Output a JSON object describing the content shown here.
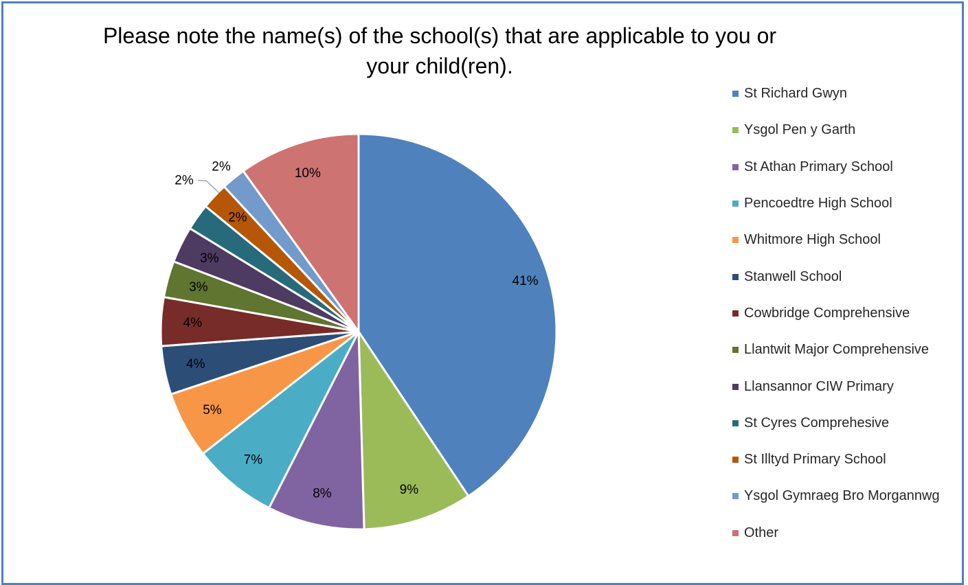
{
  "chart_data": {
    "type": "pie",
    "title": "Please note the name(s) of the school(s) that are applicable to you or your child(ren).",
    "legend_position": "right",
    "start_angle_deg": 0,
    "direction": "clockwise",
    "slices": [
      {
        "name": "St Richard Gwyn",
        "value": 41,
        "label": "41%",
        "color": "#4f81bd"
      },
      {
        "name": "Ysgol Pen y Garth",
        "value": 9,
        "label": "9%",
        "color": "#9bbb59"
      },
      {
        "name": "St Athan Primary School",
        "value": 8,
        "label": "8%",
        "color": "#8064a2"
      },
      {
        "name": "Pencoedtre High School",
        "value": 7,
        "label": "7%",
        "color": "#4bacc6"
      },
      {
        "name": "Whitmore High School",
        "value": 5.5,
        "label": "5%",
        "color": "#f79646"
      },
      {
        "name": "Stanwell School",
        "value": 4,
        "label": "4%",
        "color": "#2c4d75"
      },
      {
        "name": "Cowbridge Comprehensive",
        "value": 4,
        "label": "4%",
        "color": "#772c2a"
      },
      {
        "name": "Llantwit Major Comprehensive",
        "value": 3,
        "label": "3%",
        "color": "#5f7530"
      },
      {
        "name": "Llansannor CIW Primary",
        "value": 3,
        "label": "3%",
        "color": "#4d3b62"
      },
      {
        "name": "St Cyres Comprehesive",
        "value": 2.2,
        "label": "2%",
        "color": "#276a7c"
      },
      {
        "name": "St Illtyd Primary School",
        "value": 2.2,
        "label": "2%",
        "color": "#b65708"
      },
      {
        "name": "Ysgol Gymraeg Bro Morgannwg",
        "value": 2,
        "label": "2%",
        "color": "#729aca"
      },
      {
        "name": "Other",
        "value": 10,
        "label": "10%",
        "color": "#cd7371"
      }
    ]
  }
}
